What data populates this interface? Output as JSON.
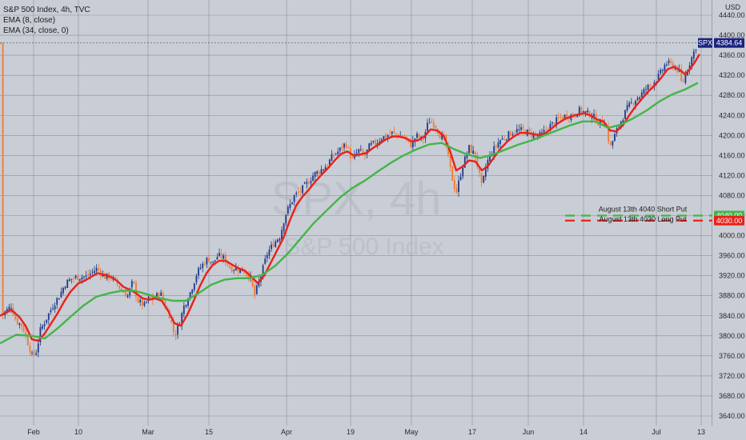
{
  "legend": {
    "title": "S&P 500 Index, 4h, TVC",
    "ema8": "EMA (8, close)",
    "ema34": "EMA (34, close, 0)"
  },
  "watermark": {
    "symbol": "SPX, 4h",
    "name": "S&P 500 Index"
  },
  "colors": {
    "background": "#c9cdd5",
    "grid": "#5b6070",
    "up_candle": "#1e3a8a",
    "down_candle": "#f07a35",
    "ema8": "#e8221b",
    "ema34": "#43b549",
    "short_put": "#43b549",
    "long_put": "#e8221b",
    "price_tag": "#1a237e"
  },
  "chart_data": {
    "type": "candlestick",
    "title": "S&P 500 Index, 4h, TVC",
    "ylabel": "USD",
    "ylim": [
      3620,
      4460
    ],
    "y_ticks": [
      3640,
      3680,
      3720,
      3760,
      3800,
      3840,
      3880,
      3920,
      3960,
      4000,
      4040,
      4080,
      4120,
      4160,
      4200,
      4240,
      4280,
      4320,
      4360,
      4400,
      4440
    ],
    "x_ticks": [
      {
        "label": "Feb",
        "t": 42
      },
      {
        "label": "10",
        "t": 98
      },
      {
        "label": "Mar",
        "t": 185
      },
      {
        "label": "15",
        "t": 261
      },
      {
        "label": "Apr",
        "t": 358
      },
      {
        "label": "19",
        "t": 438
      },
      {
        "label": "May",
        "t": 514
      },
      {
        "label": "17",
        "t": 590
      },
      {
        "label": "Jun",
        "t": 660
      },
      {
        "label": "14",
        "t": 729
      },
      {
        "label": "Jul",
        "t": 820
      },
      {
        "label": "13",
        "t": 876
      }
    ],
    "y_unit": "USD",
    "price": {
      "close_points": [
        [
          2,
          3840
        ],
        [
          14,
          3860
        ],
        [
          20,
          3830
        ],
        [
          28,
          3820
        ],
        [
          34,
          3790
        ],
        [
          40,
          3760
        ],
        [
          46,
          3770
        ],
        [
          50,
          3810
        ],
        [
          58,
          3835
        ],
        [
          66,
          3860
        ],
        [
          74,
          3880
        ],
        [
          82,
          3905
        ],
        [
          90,
          3915
        ],
        [
          100,
          3918
        ],
        [
          108,
          3918
        ],
        [
          116,
          3928
        ],
        [
          122,
          3935
        ],
        [
          130,
          3918
        ],
        [
          138,
          3918
        ],
        [
          146,
          3905
        ],
        [
          152,
          3890
        ],
        [
          160,
          3880
        ],
        [
          166,
          3910
        ],
        [
          172,
          3870
        ],
        [
          180,
          3860
        ],
        [
          186,
          3875
        ],
        [
          192,
          3872
        ],
        [
          200,
          3888
        ],
        [
          206,
          3860
        ],
        [
          212,
          3840
        ],
        [
          218,
          3800
        ],
        [
          224,
          3825
        ],
        [
          230,
          3860
        ],
        [
          238,
          3888
        ],
        [
          246,
          3925
        ],
        [
          252,
          3940
        ],
        [
          260,
          3955
        ],
        [
          266,
          3945
        ],
        [
          272,
          3960
        ],
        [
          280,
          3955
        ],
        [
          288,
          3935
        ],
        [
          296,
          3935
        ],
        [
          304,
          3930
        ],
        [
          312,
          3920
        ],
        [
          318,
          3880
        ],
        [
          326,
          3920
        ],
        [
          334,
          3965
        ],
        [
          342,
          3985
        ],
        [
          350,
          4000
        ],
        [
          356,
          4040
        ],
        [
          362,
          4060
        ],
        [
          368,
          4080
        ],
        [
          376,
          4090
        ],
        [
          384,
          4105
        ],
        [
          392,
          4122
        ],
        [
          400,
          4130
        ],
        [
          408,
          4140
        ],
        [
          416,
          4160
        ],
        [
          424,
          4170
        ],
        [
          432,
          4185
        ],
        [
          440,
          4150
        ],
        [
          448,
          4170
        ],
        [
          456,
          4160
        ],
        [
          462,
          4180
        ],
        [
          470,
          4185
        ],
        [
          476,
          4195
        ],
        [
          484,
          4200
        ],
        [
          490,
          4205
        ],
        [
          498,
          4200
        ],
        [
          506,
          4195
        ],
        [
          514,
          4180
        ],
        [
          520,
          4200
        ],
        [
          528,
          4190
        ],
        [
          536,
          4230
        ],
        [
          544,
          4220
        ],
        [
          550,
          4200
        ],
        [
          556,
          4190
        ],
        [
          564,
          4120
        ],
        [
          570,
          4085
        ],
        [
          578,
          4140
        ],
        [
          586,
          4175
        ],
        [
          594,
          4160
        ],
        [
          602,
          4095
        ],
        [
          608,
          4145
        ],
        [
          616,
          4170
        ],
        [
          624,
          4190
        ],
        [
          630,
          4195
        ],
        [
          638,
          4205
        ],
        [
          646,
          4210
        ],
        [
          654,
          4210
        ],
        [
          660,
          4205
        ],
        [
          668,
          4200
        ],
        [
          676,
          4200
        ],
        [
          684,
          4215
        ],
        [
          692,
          4225
        ],
        [
          700,
          4235
        ],
        [
          708,
          4240
        ],
        [
          716,
          4240
        ],
        [
          724,
          4250
        ],
        [
          732,
          4245
        ],
        [
          740,
          4240
        ],
        [
          748,
          4225
        ],
        [
          756,
          4230
        ],
        [
          762,
          4175
        ],
        [
          768,
          4200
        ],
        [
          776,
          4230
        ],
        [
          784,
          4255
        ],
        [
          792,
          4270
        ],
        [
          800,
          4280
        ],
        [
          808,
          4295
        ],
        [
          816,
          4305
        ],
        [
          824,
          4320
        ],
        [
          832,
          4345
        ],
        [
          840,
          4340
        ],
        [
          848,
          4330
        ],
        [
          852,
          4300
        ],
        [
          858,
          4330
        ],
        [
          864,
          4355
        ],
        [
          870,
          4380
        ],
        [
          872,
          4384.64
        ]
      ],
      "last": 4384.64,
      "symbol": "SPX"
    },
    "series": [
      {
        "name": "EMA (8, close)",
        "color": "#e8221b",
        "points": [
          [
            0,
            3840
          ],
          [
            14,
            3852
          ],
          [
            24,
            3838
          ],
          [
            32,
            3820
          ],
          [
            40,
            3793
          ],
          [
            48,
            3790
          ],
          [
            56,
            3805
          ],
          [
            64,
            3825
          ],
          [
            72,
            3845
          ],
          [
            80,
            3868
          ],
          [
            88,
            3888
          ],
          [
            98,
            3905
          ],
          [
            106,
            3910
          ],
          [
            114,
            3918
          ],
          [
            122,
            3925
          ],
          [
            130,
            3922
          ],
          [
            138,
            3918
          ],
          [
            146,
            3910
          ],
          [
            154,
            3898
          ],
          [
            162,
            3892
          ],
          [
            170,
            3885
          ],
          [
            178,
            3875
          ],
          [
            186,
            3872
          ],
          [
            194,
            3875
          ],
          [
            202,
            3870
          ],
          [
            210,
            3850
          ],
          [
            218,
            3825
          ],
          [
            226,
            3820
          ],
          [
            234,
            3842
          ],
          [
            242,
            3870
          ],
          [
            250,
            3900
          ],
          [
            258,
            3925
          ],
          [
            266,
            3942
          ],
          [
            274,
            3950
          ],
          [
            282,
            3950
          ],
          [
            290,
            3942
          ],
          [
            298,
            3935
          ],
          [
            306,
            3930
          ],
          [
            314,
            3918
          ],
          [
            322,
            3905
          ],
          [
            330,
            3920
          ],
          [
            338,
            3945
          ],
          [
            346,
            3970
          ],
          [
            354,
            3995
          ],
          [
            362,
            4030
          ],
          [
            370,
            4060
          ],
          [
            378,
            4078
          ],
          [
            386,
            4092
          ],
          [
            394,
            4108
          ],
          [
            402,
            4122
          ],
          [
            410,
            4135
          ],
          [
            418,
            4150
          ],
          [
            426,
            4163
          ],
          [
            434,
            4168
          ],
          [
            442,
            4160
          ],
          [
            450,
            4162
          ],
          [
            458,
            4165
          ],
          [
            466,
            4175
          ],
          [
            474,
            4183
          ],
          [
            482,
            4192
          ],
          [
            490,
            4198
          ],
          [
            498,
            4198
          ],
          [
            506,
            4195
          ],
          [
            514,
            4188
          ],
          [
            522,
            4190
          ],
          [
            530,
            4198
          ],
          [
            538,
            4212
          ],
          [
            546,
            4210
          ],
          [
            554,
            4200
          ],
          [
            562,
            4170
          ],
          [
            570,
            4130
          ],
          [
            578,
            4138
          ],
          [
            586,
            4150
          ],
          [
            594,
            4148
          ],
          [
            602,
            4130
          ],
          [
            610,
            4140
          ],
          [
            618,
            4158
          ],
          [
            626,
            4175
          ],
          [
            634,
            4188
          ],
          [
            642,
            4198
          ],
          [
            650,
            4205
          ],
          [
            658,
            4205
          ],
          [
            666,
            4203
          ],
          [
            674,
            4200
          ],
          [
            682,
            4205
          ],
          [
            690,
            4215
          ],
          [
            698,
            4225
          ],
          [
            706,
            4233
          ],
          [
            714,
            4238
          ],
          [
            722,
            4242
          ],
          [
            730,
            4244
          ],
          [
            738,
            4240
          ],
          [
            746,
            4232
          ],
          [
            754,
            4228
          ],
          [
            762,
            4210
          ],
          [
            770,
            4208
          ],
          [
            778,
            4220
          ],
          [
            786,
            4240
          ],
          [
            794,
            4258
          ],
          [
            802,
            4273
          ],
          [
            810,
            4288
          ],
          [
            818,
            4300
          ],
          [
            826,
            4315
          ],
          [
            834,
            4332
          ],
          [
            842,
            4337
          ],
          [
            850,
            4330
          ],
          [
            856,
            4322
          ],
          [
            862,
            4332
          ],
          [
            868,
            4346
          ],
          [
            874,
            4362
          ]
        ]
      },
      {
        "name": "EMA (34, close, 0)",
        "color": "#43b549",
        "points": [
          [
            0,
            3785
          ],
          [
            20,
            3802
          ],
          [
            40,
            3800
          ],
          [
            56,
            3795
          ],
          [
            72,
            3815
          ],
          [
            88,
            3838
          ],
          [
            104,
            3860
          ],
          [
            120,
            3878
          ],
          [
            136,
            3885
          ],
          [
            152,
            3890
          ],
          [
            168,
            3890
          ],
          [
            184,
            3883
          ],
          [
            200,
            3875
          ],
          [
            216,
            3870
          ],
          [
            232,
            3870
          ],
          [
            248,
            3885
          ],
          [
            264,
            3902
          ],
          [
            280,
            3912
          ],
          [
            296,
            3915
          ],
          [
            312,
            3915
          ],
          [
            328,
            3922
          ],
          [
            344,
            3940
          ],
          [
            360,
            3965
          ],
          [
            376,
            3995
          ],
          [
            392,
            4025
          ],
          [
            408,
            4050
          ],
          [
            424,
            4075
          ],
          [
            440,
            4095
          ],
          [
            456,
            4110
          ],
          [
            472,
            4128
          ],
          [
            488,
            4145
          ],
          [
            504,
            4160
          ],
          [
            520,
            4172
          ],
          [
            536,
            4182
          ],
          [
            552,
            4185
          ],
          [
            568,
            4172
          ],
          [
            584,
            4162
          ],
          [
            600,
            4155
          ],
          [
            616,
            4162
          ],
          [
            632,
            4172
          ],
          [
            648,
            4182
          ],
          [
            664,
            4190
          ],
          [
            680,
            4200
          ],
          [
            696,
            4210
          ],
          [
            712,
            4220
          ],
          [
            728,
            4228
          ],
          [
            744,
            4228
          ],
          [
            760,
            4215
          ],
          [
            776,
            4222
          ],
          [
            792,
            4235
          ],
          [
            808,
            4250
          ],
          [
            824,
            4268
          ],
          [
            840,
            4282
          ],
          [
            856,
            4292
          ],
          [
            872,
            4305
          ]
        ]
      }
    ],
    "annotations": [
      {
        "label": "August 13th 4040 Short Put",
        "value": 4040,
        "color": "#43b549",
        "tag": "4040.00"
      },
      {
        "label": "August 13th 4030 Long Put",
        "value": 4030,
        "color": "#e8221b",
        "tag": "4030.00"
      }
    ],
    "grid": true
  }
}
